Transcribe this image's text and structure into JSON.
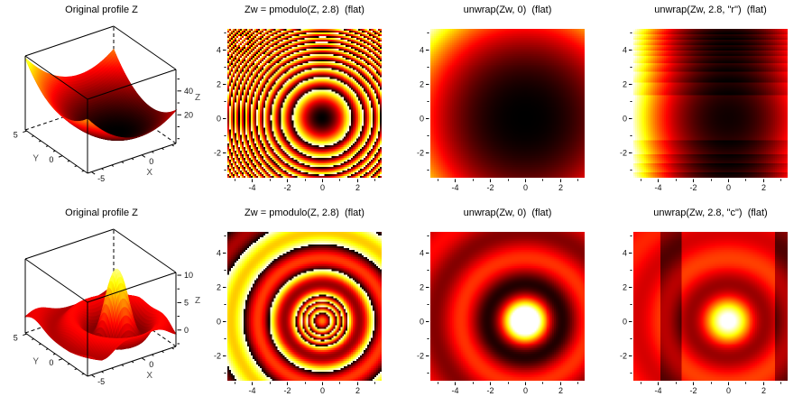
{
  "figure": {
    "bg_color": "#ffffff",
    "rows": 2,
    "cols": 4
  },
  "colormap": {
    "name": "hot",
    "stops": [
      "#000000",
      "#ff0000",
      "#ffff00",
      "#ffffff"
    ]
  },
  "chart_data": [
    {
      "id": "surface-original-top",
      "type": "surface3d",
      "title": "Original profile Z",
      "description": "Z(x,y) = x^2 + y^2, paraboloid bowl, hot colormap",
      "func": {
        "kind": "paraboloid",
        "amp": 1,
        "k": 1
      },
      "x_range": [
        -5.4,
        3.4
      ],
      "y_range": [
        -3.5,
        5.2
      ],
      "z_range": [
        -4,
        58
      ],
      "color_range": [
        0,
        66
      ],
      "gamma": 1.1,
      "x_axis": {
        "major": [
          {
            "v": -5,
            "label": "-5"
          },
          {
            "v": 0,
            "label": "0"
          }
        ],
        "minor": [
          -4,
          -3,
          -2,
          -1,
          1,
          2,
          3
        ]
      },
      "y_axis": {
        "major": [
          {
            "v": 0,
            "label": "0"
          },
          {
            "v": 5,
            "label": "5"
          }
        ],
        "minor": [
          -3,
          -2,
          -1,
          1,
          2,
          3,
          4
        ]
      },
      "z_axis": {
        "major": [
          {
            "v": 20,
            "label": "20"
          },
          {
            "v": 40,
            "label": "40"
          }
        ],
        "minor": [
          0,
          10,
          30,
          50
        ]
      },
      "axis_labels": {
        "x": "X",
        "y": "Y",
        "z": "Z"
      }
    },
    {
      "id": "pmodulo-top",
      "type": "heatmap",
      "title": "Zw = pmodulo(Z, 2.8)  (flat)",
      "description": "Wrapped paraboloid phase, concentric rings centered at (0,0)",
      "func": {
        "kind": "paraboloid",
        "amp": 1,
        "k": 1
      },
      "transform": {
        "kind": "wrap",
        "wrap": 2.8
      },
      "x_range": [
        -5.4,
        3.4
      ],
      "y_range": [
        -3.5,
        5.2
      ],
      "color_range": [
        0,
        2.8
      ],
      "gamma": 1,
      "x_axis": {
        "major": [
          {
            "v": -4,
            "label": "-4"
          },
          {
            "v": -2,
            "label": "-2"
          },
          {
            "v": 0,
            "label": "0"
          },
          {
            "v": 2,
            "label": "2"
          }
        ],
        "minor": [
          -5,
          -3,
          -1,
          1,
          3
        ]
      },
      "y_axis": {
        "major": [
          {
            "v": -2,
            "label": "-2"
          },
          {
            "v": 0,
            "label": "0"
          },
          {
            "v": 2,
            "label": "2"
          },
          {
            "v": 4,
            "label": "4"
          }
        ],
        "minor": [
          -3,
          -1,
          1,
          3,
          5
        ]
      }
    },
    {
      "id": "unwrap-global-top",
      "type": "heatmap",
      "title": "unwrap(Zw, 0)  (flat)",
      "description": "Globally unwrapped phase = smooth paraboloid, dark at (0,0), bright at top-left corner",
      "func": {
        "kind": "paraboloid",
        "amp": 1,
        "k": 1
      },
      "transform": {
        "kind": "none",
        "wrap": 0
      },
      "x_range": [
        -5.4,
        3.4
      ],
      "y_range": [
        -3.5,
        5.2
      ],
      "color_range": [
        0,
        58
      ],
      "gamma": 1.25,
      "x_axis": {
        "major": [
          {
            "v": -4,
            "label": "-4"
          },
          {
            "v": -2,
            "label": "-2"
          },
          {
            "v": 0,
            "label": "0"
          },
          {
            "v": 2,
            "label": "2"
          }
        ],
        "minor": [
          -5,
          -3,
          -1,
          1,
          3
        ]
      },
      "y_axis": {
        "major": [
          {
            "v": -2,
            "label": "-2"
          },
          {
            "v": 0,
            "label": "0"
          },
          {
            "v": 2,
            "label": "2"
          },
          {
            "v": 4,
            "label": "4"
          }
        ],
        "minor": [
          -3,
          -1,
          1,
          3,
          5
        ]
      }
    },
    {
      "id": "unwrap-row-top",
      "type": "heatmap",
      "title": "unwrap(Zw, 2.8, \"r\")  (flat)",
      "description": "Row-wise unwrap: horizontal banding, bright left edge, dense stripes toward top/bottom",
      "func": {
        "kind": "paraboloid",
        "amp": 1,
        "k": 1
      },
      "transform": {
        "kind": "row_unwrap",
        "wrap": 2.8
      },
      "x_range": [
        -5.4,
        3.4
      ],
      "y_range": [
        -3.5,
        5.2
      ],
      "color_range": "auto",
      "gamma": 1.15,
      "x_axis": {
        "major": [
          {
            "v": -4,
            "label": "-4"
          },
          {
            "v": -2,
            "label": "-2"
          },
          {
            "v": 0,
            "label": "0"
          },
          {
            "v": 2,
            "label": "2"
          }
        ],
        "minor": [
          -5,
          -3,
          -1,
          1,
          3
        ]
      },
      "y_axis": {
        "major": [
          {
            "v": -2,
            "label": "-2"
          },
          {
            "v": 0,
            "label": "0"
          },
          {
            "v": 2,
            "label": "2"
          },
          {
            "v": 4,
            "label": "4"
          }
        ],
        "minor": [
          -3,
          -1,
          1,
          3,
          5
        ]
      }
    },
    {
      "id": "surface-original-bottom",
      "type": "surface3d",
      "title": "Original profile Z",
      "description": "Z(x,y) = 10*sinc(2.1*r), central peak 10 with ripples about 0",
      "func": {
        "kind": "sinc",
        "amp": 10,
        "k": 2.1
      },
      "x_range": [
        -5.4,
        3.4
      ],
      "y_range": [
        -3.5,
        5.2
      ],
      "z_range": [
        -3,
        10.5
      ],
      "color_range": [
        -5.5,
        12
      ],
      "gamma": 1,
      "x_axis": {
        "major": [
          {
            "v": -5,
            "label": "-5"
          },
          {
            "v": 0,
            "label": "0"
          }
        ],
        "minor": [
          -4,
          -3,
          -2,
          -1,
          1,
          2,
          3
        ]
      },
      "y_axis": {
        "major": [
          {
            "v": 0,
            "label": "0"
          },
          {
            "v": 5,
            "label": "5"
          }
        ],
        "minor": [
          -3,
          -2,
          -1,
          1,
          2,
          3,
          4
        ]
      },
      "z_axis": {
        "major": [
          {
            "v": 0,
            "label": "0"
          },
          {
            "v": 5,
            "label": "5"
          },
          {
            "v": 10,
            "label": "10"
          }
        ],
        "minor": [
          -2.5,
          2.5,
          7.5
        ]
      },
      "axis_labels": {
        "x": "X",
        "y": "Y",
        "z": "Z"
      }
    },
    {
      "id": "pmodulo-bottom",
      "type": "heatmap",
      "title": "Zw = pmodulo(Z, 2.8)  (flat)",
      "description": "Wrapped sinc profile: tight rings near center, wide maroon/yellow rings outward",
      "func": {
        "kind": "sinc",
        "amp": 10,
        "k": 2.1
      },
      "transform": {
        "kind": "wrap",
        "wrap": 2.8
      },
      "x_range": [
        -5.4,
        3.4
      ],
      "y_range": [
        -3.5,
        5.2
      ],
      "color_range": [
        0,
        2.8
      ],
      "gamma": 1,
      "x_axis": {
        "major": [
          {
            "v": -4,
            "label": "-4"
          },
          {
            "v": -2,
            "label": "-2"
          },
          {
            "v": 0,
            "label": "0"
          },
          {
            "v": 2,
            "label": "2"
          }
        ],
        "minor": [
          -5,
          -3,
          -1,
          1,
          3
        ]
      },
      "y_axis": {
        "major": [
          {
            "v": -2,
            "label": "-2"
          },
          {
            "v": 0,
            "label": "0"
          },
          {
            "v": 2,
            "label": "2"
          },
          {
            "v": 4,
            "label": "4"
          }
        ],
        "minor": [
          -3,
          -1,
          1,
          3,
          5
        ]
      }
    },
    {
      "id": "unwrap-global-bottom",
      "type": "heatmap",
      "title": "unwrap(Zw, 0)  (flat)",
      "description": "Globally unwrapped sinc: white-yellow peak at (0,0), black ring, red ripples",
      "func": {
        "kind": "sinc",
        "amp": 10,
        "k": 2.1
      },
      "transform": {
        "kind": "none",
        "wrap": 0
      },
      "x_range": [
        -5.4,
        3.4
      ],
      "y_range": [
        -3.5,
        5.2
      ],
      "color_range": [
        -2.6,
        6.1
      ],
      "gamma": 1,
      "x_axis": {
        "major": [
          {
            "v": -4,
            "label": "-4"
          },
          {
            "v": -2,
            "label": "-2"
          },
          {
            "v": 0,
            "label": "0"
          },
          {
            "v": 2,
            "label": "2"
          }
        ],
        "minor": [
          -5,
          -3,
          -1,
          1,
          3
        ]
      },
      "y_axis": {
        "major": [
          {
            "v": -2,
            "label": "-2"
          },
          {
            "v": 0,
            "label": "0"
          },
          {
            "v": 2,
            "label": "2"
          },
          {
            "v": 4,
            "label": "4"
          }
        ],
        "minor": [
          -3,
          -1,
          1,
          3,
          5
        ]
      }
    },
    {
      "id": "unwrap-col-bottom",
      "type": "heatmap",
      "title": "unwrap(Zw, 2.8, \"c\")  (flat)",
      "description": "Column-wise unwrap: like global result but with dark vertical bands for 2.68<|x|<3.88",
      "func": {
        "kind": "sinc",
        "amp": 10,
        "k": 2.1
      },
      "transform": {
        "kind": "col_bands",
        "wrap": 2.8,
        "band": [
          2.68,
          3.88
        ]
      },
      "x_range": [
        -5.4,
        3.4
      ],
      "y_range": [
        -3.5,
        5.2
      ],
      "color_range": [
        -5.4,
        8.9
      ],
      "gamma": 1,
      "x_axis": {
        "major": [
          {
            "v": -4,
            "label": "-4"
          },
          {
            "v": -2,
            "label": "-2"
          },
          {
            "v": 0,
            "label": "0"
          },
          {
            "v": 2,
            "label": "2"
          }
        ],
        "minor": [
          -5,
          -3,
          -1,
          1,
          3
        ]
      },
      "y_axis": {
        "major": [
          {
            "v": -2,
            "label": "-2"
          },
          {
            "v": 0,
            "label": "0"
          },
          {
            "v": 2,
            "label": "2"
          },
          {
            "v": 4,
            "label": "4"
          }
        ],
        "minor": [
          -3,
          -1,
          1,
          3,
          5
        ]
      }
    }
  ]
}
